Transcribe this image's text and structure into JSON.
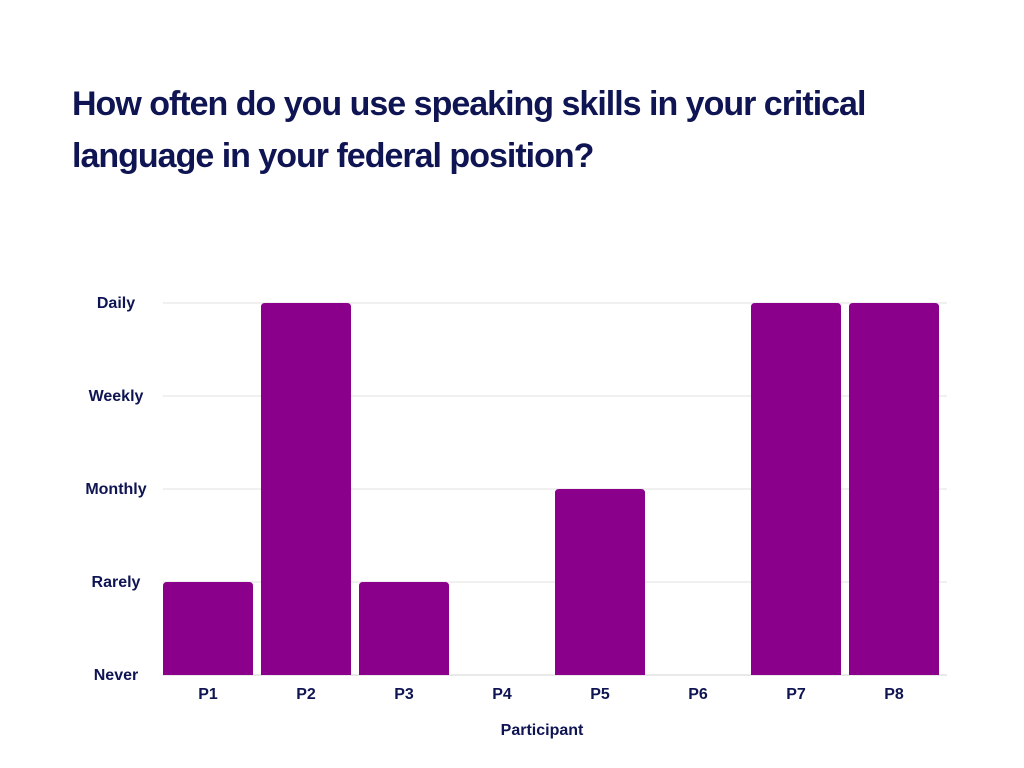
{
  "chart_data": {
    "type": "bar",
    "title": "How often do you use speaking skills in your critical language in your federal position?",
    "xlabel": "Participant",
    "ylabel": "",
    "categories": [
      "P1",
      "P2",
      "P3",
      "P4",
      "P5",
      "P6",
      "P7",
      "P8"
    ],
    "y_levels": [
      "Never",
      "Rarely",
      "Monthly",
      "Weekly",
      "Daily"
    ],
    "values": [
      1,
      4,
      1,
      0,
      2,
      0,
      4,
      4
    ],
    "value_labels": [
      "Rarely",
      "Daily",
      "Rarely",
      "Never",
      "Monthly",
      "Never",
      "Daily",
      "Daily"
    ],
    "ylim": [
      0,
      4
    ],
    "grid": true,
    "legend": "none",
    "colors": {
      "bar": "#8b008b",
      "text": "#0f1452",
      "grid": "#e2e2e2"
    }
  }
}
